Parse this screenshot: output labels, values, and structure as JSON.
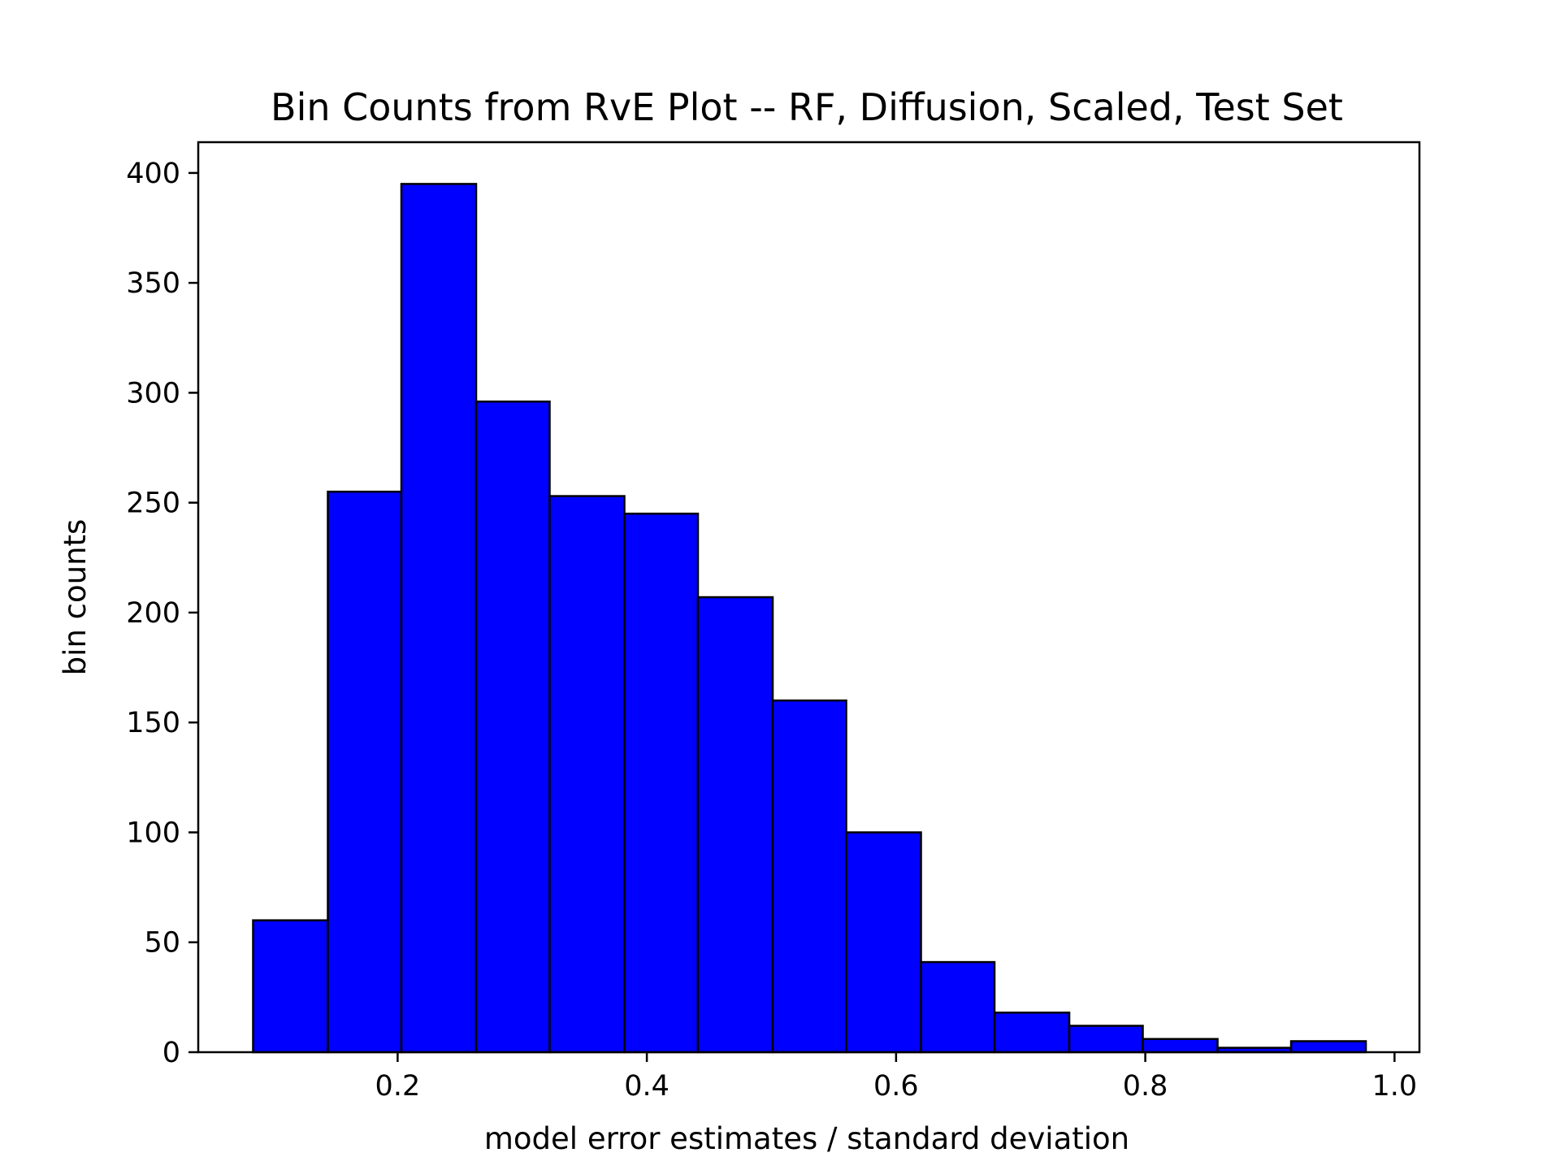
{
  "chart_data": {
    "type": "bar",
    "title": "Bin Counts from RvE Plot -- RF, Diffusion, Scaled, Test Set",
    "xlabel": "model error estimates / standard deviation",
    "ylabel": "bin counts",
    "xlim": [
      0.04,
      1.02
    ],
    "ylim": [
      0,
      414
    ],
    "xticks": [
      0.2,
      0.4,
      0.6,
      0.8,
      1.0
    ],
    "xtick_labels": [
      "0.2",
      "0.4",
      "0.6",
      "0.8",
      "1.0"
    ],
    "yticks": [
      0,
      50,
      100,
      150,
      200,
      250,
      300,
      350,
      400
    ],
    "ytick_labels": [
      "0",
      "50",
      "100",
      "150",
      "200",
      "250",
      "300",
      "350",
      "400"
    ],
    "bar_color": "#0000ff",
    "edge_color": "#000000",
    "grid": false,
    "legend": "none",
    "bins": [
      {
        "x0": 0.084,
        "x1": 0.144,
        "count": 60
      },
      {
        "x0": 0.144,
        "x1": 0.203,
        "count": 255
      },
      {
        "x0": 0.203,
        "x1": 0.263,
        "count": 395
      },
      {
        "x0": 0.263,
        "x1": 0.322,
        "count": 296
      },
      {
        "x0": 0.322,
        "x1": 0.382,
        "count": 253
      },
      {
        "x0": 0.382,
        "x1": 0.441,
        "count": 245
      },
      {
        "x0": 0.441,
        "x1": 0.501,
        "count": 207
      },
      {
        "x0": 0.501,
        "x1": 0.56,
        "count": 160
      },
      {
        "x0": 0.56,
        "x1": 0.62,
        "count": 100
      },
      {
        "x0": 0.62,
        "x1": 0.679,
        "count": 41
      },
      {
        "x0": 0.679,
        "x1": 0.739,
        "count": 18
      },
      {
        "x0": 0.739,
        "x1": 0.798,
        "count": 12
      },
      {
        "x0": 0.798,
        "x1": 0.858,
        "count": 6
      },
      {
        "x0": 0.858,
        "x1": 0.917,
        "count": 2
      },
      {
        "x0": 0.917,
        "x1": 0.977,
        "count": 5
      }
    ]
  }
}
